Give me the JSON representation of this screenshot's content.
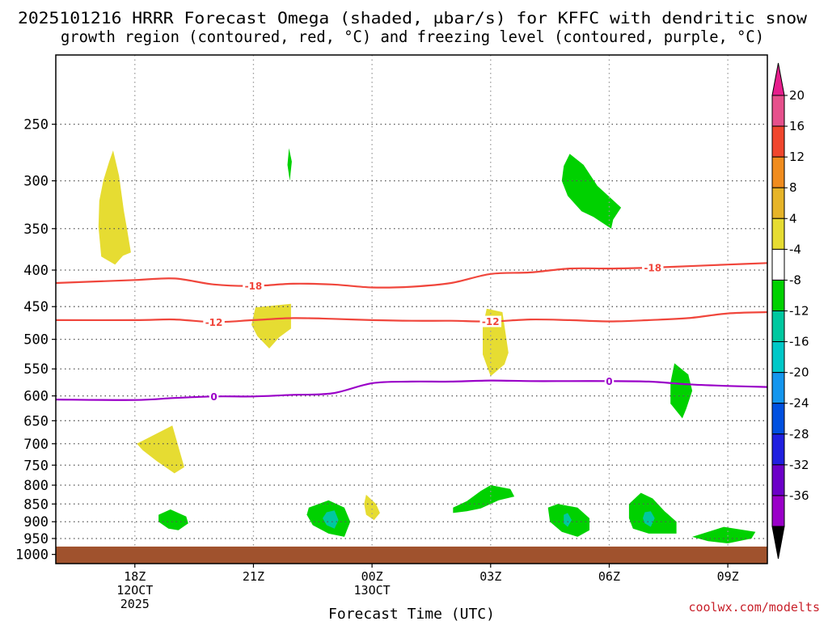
{
  "chart_data": {
    "type": "heatmap",
    "title_lines": [
      "2025101216 HRRR Forecast Omega (shaded, μbar/s) for KFFC with dendritic snow",
      "growth region (contoured, red, °C) and freezing level (contoured, purple, °C)"
    ],
    "xlabel": "Forecast Time (UTC)",
    "credit": "coolwx.com/modelts",
    "x_range_hours": [
      0,
      18
    ],
    "x_ticks": [
      {
        "hour": 2,
        "lines": [
          "18Z",
          "12OCT",
          "2025"
        ]
      },
      {
        "hour": 5,
        "lines": [
          "21Z"
        ]
      },
      {
        "hour": 8,
        "lines": [
          "00Z",
          "13OCT"
        ]
      },
      {
        "hour": 11,
        "lines": [
          "03Z"
        ]
      },
      {
        "hour": 14,
        "lines": [
          "06Z"
        ]
      },
      {
        "hour": 17,
        "lines": [
          "09Z"
        ]
      }
    ],
    "y_axis": {
      "type": "log-pressure",
      "unit": "hPa",
      "range": [
        1030,
        200
      ],
      "ticks": [
        "250",
        "300",
        "350",
        "400",
        "450",
        "500",
        "550",
        "600",
        "650",
        "700",
        "750",
        "800",
        "850",
        "900",
        "950",
        "1000"
      ]
    },
    "ground_level_hpa": 975,
    "colorbar": {
      "label_values": [
        "20",
        "16",
        "12",
        "8",
        "4",
        "-4",
        "-8",
        "-12",
        "-16",
        "-20",
        "-24",
        "-28",
        "-32",
        "-36"
      ],
      "levels": [
        -36,
        -32,
        -28,
        -24,
        -20,
        -16,
        -12,
        -8,
        -4,
        4,
        8,
        12,
        16,
        20
      ],
      "colors": [
        "#aaaaaa",
        "#9a00c8",
        "#6c00c8",
        "#2020e0",
        "#0050e0",
        "#1496ee",
        "#00c8c8",
        "#00c8a0",
        "#00d100",
        "#ffffff",
        "#e6dc32",
        "#e6b428",
        "#f08c1e",
        "#f0462d",
        "#e6508c"
      ],
      "below_color": "#000000",
      "above_color": "#e61e8c"
    },
    "omega_regions": [
      {
        "category": "4 to 8",
        "color": "#e6dc32",
        "pts": [
          [
            1.35,
            282
          ],
          [
            1.45,
            272
          ],
          [
            1.6,
            295
          ],
          [
            1.72,
            330
          ],
          [
            1.8,
            350
          ],
          [
            1.9,
            378
          ],
          [
            1.7,
            382
          ],
          [
            1.5,
            393
          ],
          [
            1.15,
            383
          ],
          [
            1.08,
            348
          ],
          [
            1.1,
            320
          ],
          [
            1.2,
            300
          ]
        ]
      },
      {
        "category": "4 to 8",
        "color": "#e6dc32",
        "pts": [
          [
            5.05,
            451
          ],
          [
            5.95,
            446
          ],
          [
            5.95,
            483
          ],
          [
            5.65,
            497
          ],
          [
            5.4,
            515
          ],
          [
            5.1,
            495
          ],
          [
            4.95,
            477
          ]
        ]
      },
      {
        "category": "4 to 8",
        "color": "#e6dc32",
        "pts": [
          [
            10.9,
            453
          ],
          [
            11.3,
            458
          ],
          [
            11.45,
            522
          ],
          [
            11.35,
            542
          ],
          [
            11.0,
            563
          ],
          [
            10.8,
            525
          ],
          [
            10.8,
            480
          ]
        ]
      },
      {
        "category": "4 to 8",
        "color": "#e6dc32",
        "pts": [
          [
            2.05,
            700
          ],
          [
            2.95,
            660
          ],
          [
            3.25,
            755
          ],
          [
            3.0,
            770
          ],
          [
            2.55,
            740
          ],
          [
            2.2,
            715
          ]
        ]
      },
      {
        "category": "4 to 8",
        "color": "#e6dc32",
        "pts": [
          [
            7.85,
            825
          ],
          [
            8.1,
            850
          ],
          [
            8.2,
            875
          ],
          [
            8.05,
            895
          ],
          [
            7.85,
            880
          ],
          [
            7.8,
            850
          ]
        ]
      },
      {
        "category": "-8 to -4",
        "color": "#00d100",
        "pts": [
          [
            5.9,
            270
          ],
          [
            5.97,
            282
          ],
          [
            5.92,
            300
          ],
          [
            5.86,
            285
          ]
        ]
      },
      {
        "category": "-8 to -4",
        "color": "#00d100",
        "pts": [
          [
            12.85,
            286
          ],
          [
            13.0,
            275
          ],
          [
            13.35,
            285
          ],
          [
            13.7,
            305
          ],
          [
            14.3,
            327
          ],
          [
            14.1,
            340
          ],
          [
            14.05,
            350
          ],
          [
            13.6,
            337
          ],
          [
            13.3,
            331
          ],
          [
            12.95,
            315
          ],
          [
            12.8,
            300
          ]
        ]
      },
      {
        "category": "-8 to -4",
        "color": "#00d100",
        "pts": [
          [
            15.65,
            540
          ],
          [
            16.0,
            560
          ],
          [
            16.1,
            590
          ],
          [
            15.95,
            625
          ],
          [
            15.85,
            645
          ],
          [
            15.55,
            615
          ],
          [
            15.55,
            575
          ]
        ]
      },
      {
        "category": "-8 to -4",
        "color": "#00d100",
        "pts": [
          [
            2.6,
            880
          ],
          [
            2.9,
            865
          ],
          [
            3.3,
            885
          ],
          [
            3.35,
            905
          ],
          [
            3.1,
            925
          ],
          [
            2.85,
            920
          ],
          [
            2.6,
            900
          ]
        ]
      },
      {
        "category": "-8 to -4",
        "color": "#00d100",
        "pts": [
          [
            6.4,
            860
          ],
          [
            6.9,
            840
          ],
          [
            7.3,
            860
          ],
          [
            7.45,
            900
          ],
          [
            7.3,
            945
          ],
          [
            6.9,
            935
          ],
          [
            6.5,
            910
          ],
          [
            6.35,
            880
          ]
        ]
      },
      {
        "category": "-8 to -4",
        "color": "#00d100",
        "pts": [
          [
            10.05,
            860
          ],
          [
            10.4,
            842
          ],
          [
            10.75,
            815
          ],
          [
            11.0,
            800
          ],
          [
            11.5,
            810
          ],
          [
            11.6,
            830
          ],
          [
            11.2,
            840
          ],
          [
            10.75,
            862
          ],
          [
            10.4,
            870
          ],
          [
            10.05,
            875
          ]
        ]
      },
      {
        "category": "-8 to -4",
        "color": "#00d100",
        "pts": [
          [
            12.45,
            860
          ],
          [
            12.7,
            850
          ],
          [
            13.2,
            860
          ],
          [
            13.5,
            890
          ],
          [
            13.5,
            925
          ],
          [
            13.2,
            945
          ],
          [
            12.8,
            930
          ],
          [
            12.5,
            900
          ]
        ]
      },
      {
        "category": "-8 to -4",
        "color": "#00d100",
        "pts": [
          [
            14.5,
            850
          ],
          [
            14.8,
            820
          ],
          [
            15.1,
            835
          ],
          [
            15.4,
            870
          ],
          [
            15.7,
            900
          ],
          [
            15.7,
            935
          ],
          [
            15.0,
            935
          ],
          [
            14.6,
            920
          ],
          [
            14.5,
            890
          ]
        ]
      },
      {
        "category": "-8 to -4",
        "color": "#00d100",
        "pts": [
          [
            16.1,
            945
          ],
          [
            16.9,
            915
          ],
          [
            17.7,
            930
          ],
          [
            17.6,
            950
          ],
          [
            17.0,
            965
          ],
          [
            16.5,
            958
          ]
        ]
      },
      {
        "category": "-12 to -8",
        "color": "#00c8a0",
        "pts": [
          [
            6.85,
            873
          ],
          [
            7.05,
            868
          ],
          [
            7.15,
            895
          ],
          [
            7.05,
            920
          ],
          [
            6.85,
            910
          ],
          [
            6.75,
            890
          ]
        ]
      },
      {
        "category": "-12 to -8",
        "color": "#00c8a0",
        "pts": [
          [
            12.85,
            880
          ],
          [
            12.95,
            875
          ],
          [
            13.05,
            895
          ],
          [
            12.95,
            915
          ],
          [
            12.85,
            905
          ]
        ]
      },
      {
        "category": "-12 to -8",
        "color": "#00c8a0",
        "pts": [
          [
            14.9,
            873
          ],
          [
            15.05,
            870
          ],
          [
            15.15,
            890
          ],
          [
            15.05,
            915
          ],
          [
            14.9,
            905
          ],
          [
            14.85,
            890
          ]
        ]
      }
    ],
    "contours": [
      {
        "name": "dgz-top",
        "value": "-18",
        "color": "#f0463c",
        "pts": [
          [
            0,
            417
          ],
          [
            2,
            413
          ],
          [
            3,
            411
          ],
          [
            4,
            419
          ],
          [
            5,
            421
          ],
          [
            6,
            418
          ],
          [
            7,
            419
          ],
          [
            8,
            423
          ],
          [
            9,
            422
          ],
          [
            10,
            417
          ],
          [
            11,
            405
          ],
          [
            12,
            403
          ],
          [
            13,
            398
          ],
          [
            14,
            398
          ],
          [
            15,
            397
          ],
          [
            16,
            395
          ],
          [
            17,
            393
          ],
          [
            18,
            391
          ]
        ],
        "label_at": [
          [
            5.0,
            421
          ],
          [
            15.1,
            397
          ]
        ]
      },
      {
        "name": "dgz-bottom",
        "value": "-12",
        "color": "#f0463c",
        "pts": [
          [
            0,
            470
          ],
          [
            2,
            470
          ],
          [
            3,
            469
          ],
          [
            4,
            473
          ],
          [
            5,
            470
          ],
          [
            6,
            467
          ],
          [
            7,
            468
          ],
          [
            8,
            470
          ],
          [
            9,
            471
          ],
          [
            10,
            471
          ],
          [
            11,
            472
          ],
          [
            12,
            469
          ],
          [
            13,
            470
          ],
          [
            14,
            472
          ],
          [
            15,
            470
          ],
          [
            16,
            467
          ],
          [
            17,
            460
          ],
          [
            18,
            458
          ]
        ],
        "label_at": [
          [
            4.0,
            473
          ],
          [
            11.0,
            472
          ]
        ]
      },
      {
        "name": "freezing-level",
        "value": "0",
        "color": "#9a00c8",
        "pts": [
          [
            0,
            607
          ],
          [
            2,
            608
          ],
          [
            3,
            604
          ],
          [
            4,
            601
          ],
          [
            5,
            601
          ],
          [
            6,
            598
          ],
          [
            7,
            595
          ],
          [
            8,
            576
          ],
          [
            9,
            573
          ],
          [
            10,
            573
          ],
          [
            11,
            571
          ],
          [
            12,
            572
          ],
          [
            13,
            572
          ],
          [
            14,
            572
          ],
          [
            15,
            573
          ],
          [
            16,
            578
          ],
          [
            17,
            581
          ],
          [
            18,
            583
          ]
        ],
        "label_at": [
          [
            4.0,
            601
          ],
          [
            14.0,
            572
          ]
        ]
      }
    ]
  }
}
